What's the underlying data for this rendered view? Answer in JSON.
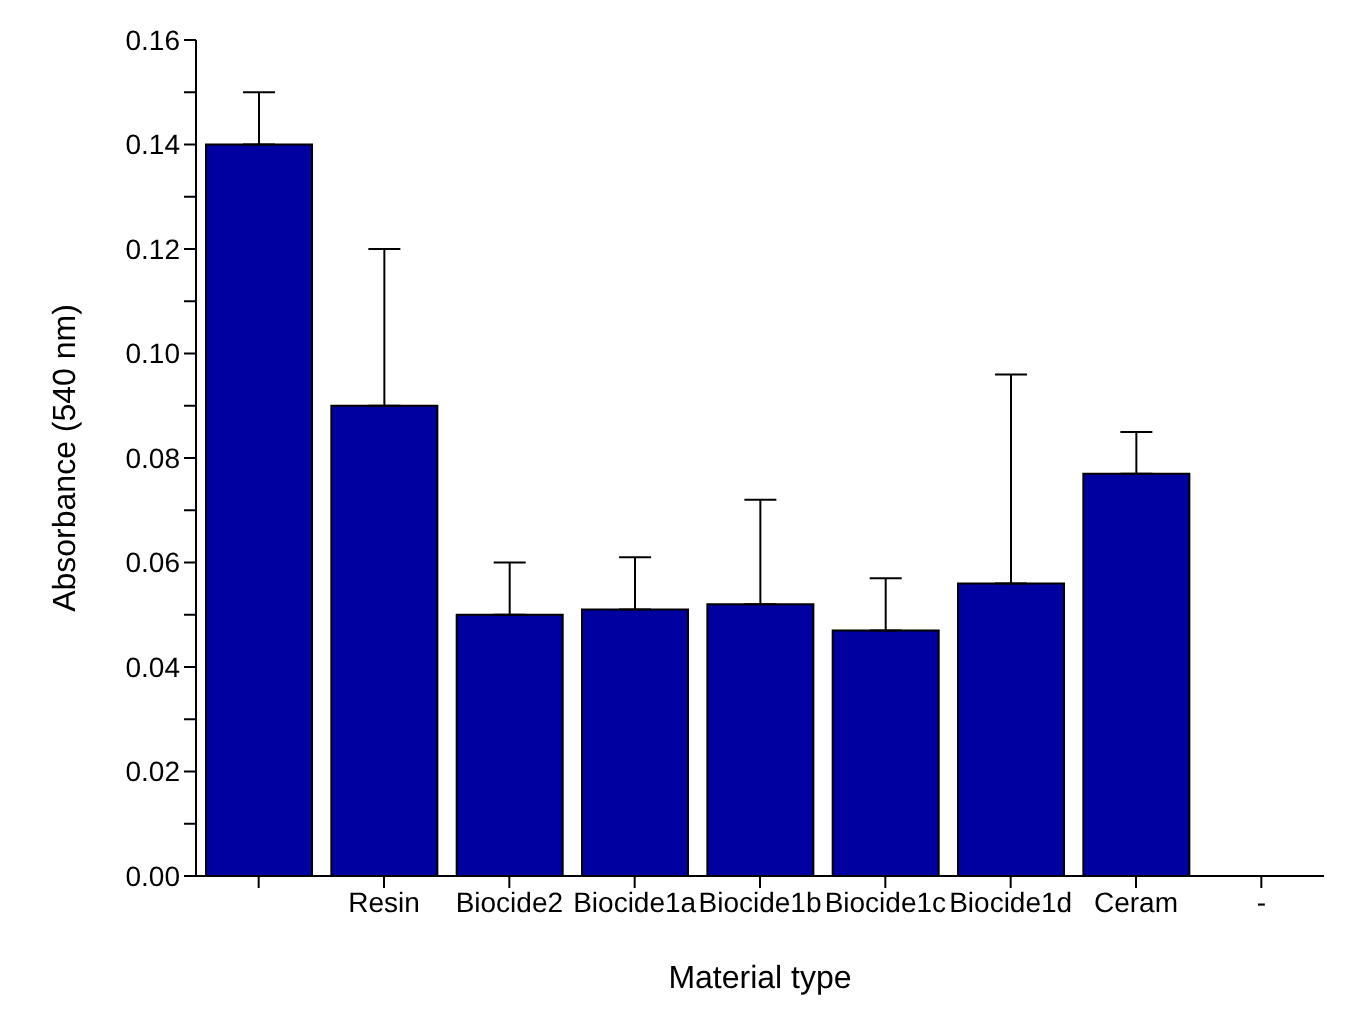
{
  "chart_data": {
    "type": "bar",
    "xlabel": "Material type",
    "ylabel": "Absorbance (540 nm)",
    "categories": [
      null,
      "Resin",
      "Biocide2",
      "Biocide1a",
      "Biocide1b",
      "Biocide1c",
      "Biocide1d",
      "Ceram",
      "-"
    ],
    "values": [
      0.14,
      0.09,
      0.05,
      0.051,
      0.052,
      0.047,
      0.056,
      0.077,
      null
    ],
    "errors": [
      [
        0.14,
        0.15
      ],
      [
        0.09,
        0.12
      ],
      [
        0.05,
        0.06
      ],
      [
        0.051,
        0.061
      ],
      [
        0.052,
        0.072
      ],
      [
        0.047,
        0.057
      ],
      [
        0.056,
        0.096
      ],
      [
        0.077,
        0.085
      ],
      null
    ],
    "color": "#0000a0",
    "ylim": [
      0,
      0.16
    ],
    "yticks": [
      {
        "value": 0,
        "label": "0.00"
      },
      {
        "value": 0.01,
        "label": null
      },
      {
        "value": 0.02,
        "label": "0.02"
      },
      {
        "value": 0.03,
        "label": null
      },
      {
        "value": 0.04,
        "label": "0.04"
      },
      {
        "value": 0.05,
        "label": null
      },
      {
        "value": 0.06,
        "label": "0.06"
      },
      {
        "value": 0.07,
        "label": null
      },
      {
        "value": 0.08,
        "label": "0.08"
      },
      {
        "value": 0.09,
        "label": null
      },
      {
        "value": 0.1,
        "label": "0.10"
      },
      {
        "value": 0.11,
        "label": null
      },
      {
        "value": 0.12,
        "label": "0.12"
      },
      {
        "value": 0.13,
        "label": null
      },
      {
        "value": 0.14,
        "label": "0.14"
      },
      {
        "value": 0.15,
        "label": null
      },
      {
        "value": 0.16,
        "label": "0.16"
      }
    ],
    "grid": false,
    "legend": false
  }
}
